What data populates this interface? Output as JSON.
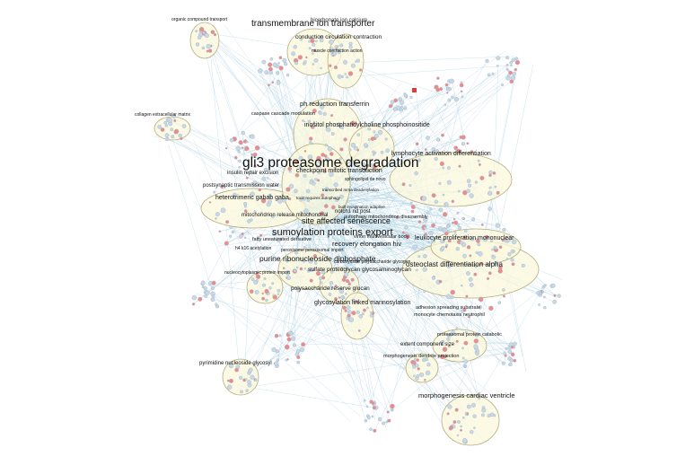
{
  "colors": {
    "background": "#ffffff",
    "cluster_fill": "#fbf8dc",
    "cluster_stroke": "#b5ad7a",
    "edge": "#9cc7dc",
    "node_blue": "#c9d8e6",
    "node_red": "#f08a8a",
    "node_dark_red": "#e23a3a",
    "label": "#111111"
  },
  "labels": {
    "organic_compound_transport": "organic compound transport",
    "transmembrane_ion_transporter": "transmembrane ion transporter",
    "bicarbonate_ion_calcium": "bicarbonate ion calcium",
    "conduction_circulation_contraction": "conduction circulation contraction",
    "muscle_contraction_action": "muscle contraction action",
    "collagen_extracellular_matrix": "collagen extracellular matrix",
    "ph_reduction_transferrin": "ph reduction transferrin",
    "caspase_cascade_modulation": "caspase cascade modulation",
    "inositol_phosphatidylcholine": "inositol phosphatidylcholine phosphoinositide",
    "lymphocyte_activation": "lymphocyte activation differentiation",
    "gli3_proteasome_degradation": "gli3 proteasome degradation",
    "checkpoint_mitotic_transduction": "checkpoint mitotic transduction",
    "insulin_repair_excision": "insulin repair excision",
    "postsynaptic_transmission_water": "postsynaptic transmission water",
    "sphingolipid_de_novo": "sphingolipid de novo",
    "transcribed_mrna_deadenylation": "transcribed mrna deadenylation",
    "heterotrimeric_gaba": "heterotrimeric gabab gaba",
    "toxic_requires_autophagy": "toxic requires autophagy",
    "built_invagination_adaptive": "built invagination adaptive",
    "notch1_nd_post": "notch1 nd post",
    "mitochondrion_release": "mitochondrion release mitochondrial",
    "autophagy_mitochondrion": "autophagy mitochondrion disassembly",
    "site_affected_senescence": "site affected senescence",
    "sumoylation_proteins_export": "sumoylation proteins export",
    "fatty_unsaturated_derivative": "fatty unsaturated derivative",
    "virion_multivesicular_body": "virion multivesicular body",
    "leukocyte_proliferation": "leukocyte proliferation mononuclear",
    "recovery_elongation_hiv": "recovery elongation hiv",
    "h4_k16_acetylation": "h4 k16 acetylation",
    "peroxisome_peroxisomal_import": "peroxisome peroxisomal import",
    "purine_ribonucleoside": "purine ribonucleoside diphosphate",
    "carbohydrate_polysaccharide": "carbohydrate polysaccharide glycogen",
    "osteoclast_differentiation": "osteoclast differentiation alpha",
    "nucleocytoplasmic_protein_import": "nucleocytoplasmic protein import",
    "sulfate_proteoglycan": "sulfate proteoglycan glycosaminoglycan",
    "polysaccharide_reserve_glucan": "polysaccharide reserve glucan",
    "glycosylation_linked": "glycosylation linked mannosylation",
    "adhesion_spreading_substrate": "adhesion spreading substrate",
    "monocyte_chemotaxis": "monocyte chemotaxis neutrophil",
    "proteasomal_protein_catabolic": "proteasomal protein catabolic",
    "extent_component_size": "extent component size",
    "morphogenesis_dendrite": "morphogenesis dendrite projection",
    "pyrimidine_nucleoside": "pyrimidine nucleoside glycosyl",
    "morphogenesis_cardiac": "morphogenesis cardiac ventricle"
  }
}
